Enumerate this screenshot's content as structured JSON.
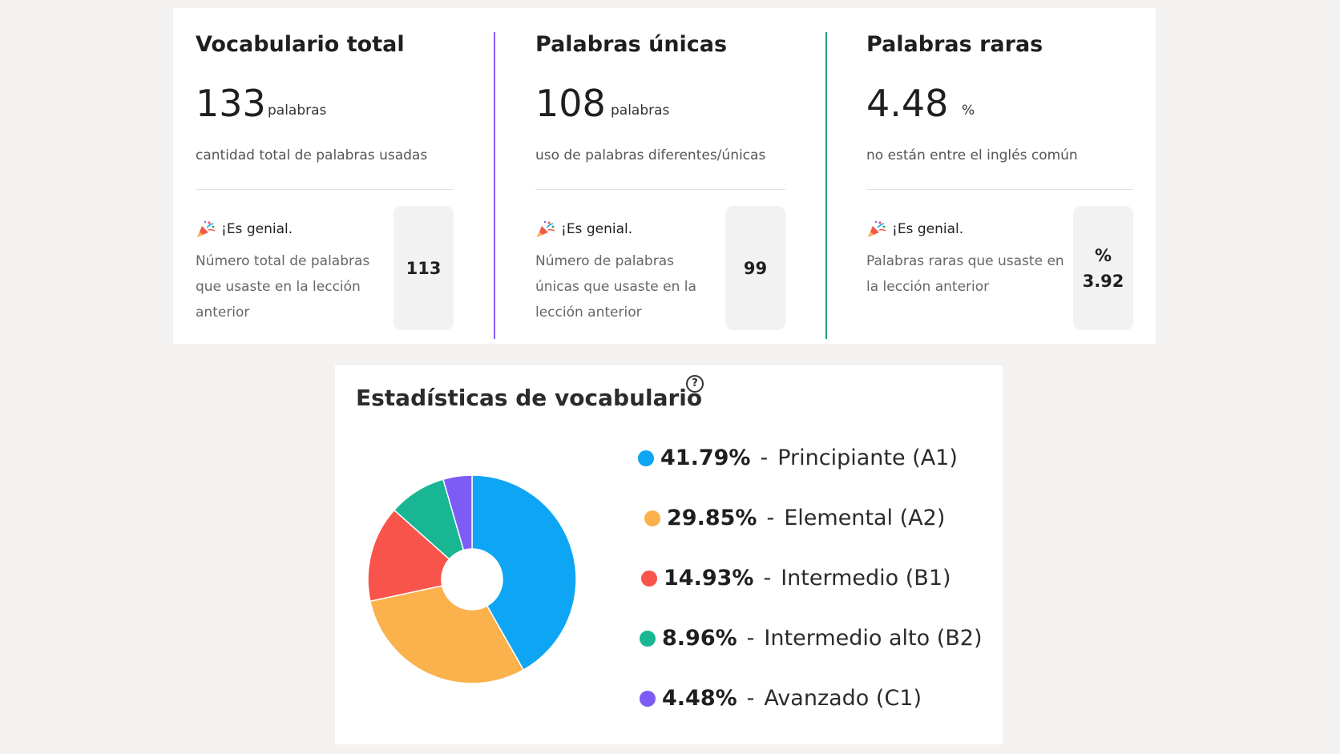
{
  "stats": [
    {
      "title": "Vocabulario total",
      "value": "133",
      "unit": "palabras",
      "description": "cantidad total de palabras usadas",
      "note_title": "¡Es genial.",
      "note_text": "Número total de palabras que usaste en la lección anterior",
      "previous_prefix": "",
      "previous_value": "113",
      "accent": "#8a5cf6"
    },
    {
      "title": "Palabras únicas",
      "value": "108",
      "unit": "palabras",
      "description": "uso de palabras diferentes/únicas",
      "note_title": "¡Es genial.",
      "note_text": "Número de palabras únicas que usaste en la lección anterior",
      "previous_prefix": "",
      "previous_value": "99",
      "accent": "#22a06b"
    },
    {
      "title": "Palabras raras",
      "value": "4.48",
      "unit": "%",
      "description": "no están entre el inglés común",
      "note_title": "¡Es genial.",
      "note_text": "Palabras raras que usaste en la lección anterior",
      "previous_prefix": "%",
      "previous_value": "3.92"
    }
  ],
  "vocab_stats": {
    "title": "Estadísticas de vocabulario",
    "help_icon": "question-circle-icon",
    "separator": "-",
    "legend": [
      {
        "percent": "41.79%",
        "label": "Principiante (A1)"
      },
      {
        "percent": "29.85%",
        "label": "Elemental (A2)"
      },
      {
        "percent": "14.93%",
        "label": "Intermedio (B1)"
      },
      {
        "percent": "8.96%",
        "label": "Intermedio alto (B2)"
      },
      {
        "percent": "4.48%",
        "label": "Avanzado (C1)"
      }
    ]
  },
  "chart_data": {
    "type": "pie",
    "title": "Estadísticas de vocabulario",
    "categories": [
      "Principiante (A1)",
      "Elemental (A2)",
      "Intermedio (B1)",
      "Intermedio alto (B2)",
      "Avanzado (C1)"
    ],
    "values": [
      41.79,
      29.85,
      14.93,
      8.96,
      4.48
    ],
    "colors": [
      "#0ea5f5",
      "#fbb24c",
      "#f9544b",
      "#19b694",
      "#7c5cf5"
    ],
    "donut": true,
    "legend_position": "right"
  }
}
